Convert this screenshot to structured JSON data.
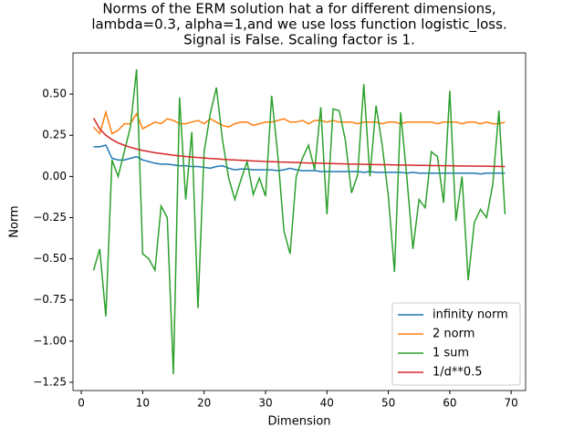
{
  "chart_data": {
    "type": "line",
    "title": [
      "Norms of the ERM solution hat a for different dimensions,",
      "lambda=0.3, alpha=1,and we use loss function logistic_loss.",
      "Signal is False. Scaling factor is 1."
    ],
    "x_label": "Dimension",
    "y_label": "Norm",
    "x": [
      2,
      3,
      4,
      5,
      6,
      7,
      8,
      9,
      10,
      11,
      12,
      13,
      14,
      15,
      16,
      17,
      18,
      19,
      20,
      21,
      22,
      23,
      24,
      25,
      26,
      27,
      28,
      29,
      30,
      31,
      32,
      33,
      34,
      35,
      36,
      37,
      38,
      39,
      40,
      41,
      42,
      43,
      44,
      45,
      46,
      47,
      48,
      49,
      50,
      51,
      52,
      53,
      54,
      55,
      56,
      57,
      58,
      59,
      60,
      61,
      62,
      63,
      64,
      65,
      66,
      67,
      68,
      69
    ],
    "series": [
      {
        "name": "infinity norm",
        "color": "#1f77b4",
        "values": [
          0.18,
          0.18,
          0.19,
          0.11,
          0.1,
          0.1,
          0.11,
          0.12,
          0.1,
          0.09,
          0.08,
          0.075,
          0.075,
          0.07,
          0.065,
          0.065,
          0.06,
          0.06,
          0.055,
          0.05,
          0.06,
          0.065,
          0.05,
          0.04,
          0.045,
          0.045,
          0.04,
          0.04,
          0.04,
          0.04,
          0.035,
          0.04,
          0.05,
          0.04,
          0.035,
          0.035,
          0.035,
          0.03,
          0.03,
          0.03,
          0.03,
          0.03,
          0.03,
          0.03,
          0.025,
          0.03,
          0.025,
          0.025,
          0.025,
          0.025,
          0.025,
          0.02,
          0.025,
          0.02,
          0.02,
          0.02,
          0.02,
          0.02,
          0.02,
          0.02,
          0.02,
          0.02,
          0.02,
          0.015,
          0.02,
          0.02,
          0.02,
          0.02
        ]
      },
      {
        "name": "2 norm",
        "color": "#ff7f0e",
        "values": [
          0.3,
          0.26,
          0.39,
          0.26,
          0.28,
          0.32,
          0.32,
          0.38,
          0.29,
          0.31,
          0.33,
          0.32,
          0.35,
          0.34,
          0.32,
          0.32,
          0.33,
          0.34,
          0.32,
          0.35,
          0.33,
          0.31,
          0.3,
          0.32,
          0.33,
          0.33,
          0.31,
          0.32,
          0.33,
          0.33,
          0.34,
          0.35,
          0.33,
          0.33,
          0.34,
          0.32,
          0.34,
          0.34,
          0.33,
          0.34,
          0.33,
          0.33,
          0.33,
          0.32,
          0.33,
          0.33,
          0.33,
          0.32,
          0.33,
          0.33,
          0.32,
          0.33,
          0.33,
          0.33,
          0.33,
          0.33,
          0.32,
          0.33,
          0.33,
          0.33,
          0.32,
          0.33,
          0.33,
          0.32,
          0.33,
          0.32,
          0.32,
          0.33
        ]
      },
      {
        "name": "1 sum",
        "color": "#2ca02c",
        "values": [
          -0.57,
          -0.44,
          -0.85,
          0.1,
          0.0,
          0.15,
          0.3,
          0.65,
          -0.47,
          -0.5,
          -0.57,
          -0.18,
          -0.25,
          -1.2,
          0.48,
          -0.14,
          0.27,
          -0.8,
          0.15,
          0.38,
          0.54,
          0.22,
          -0.01,
          -0.14,
          -0.02,
          0.09,
          -0.11,
          -0.01,
          -0.12,
          0.49,
          0.13,
          -0.33,
          -0.47,
          0.0,
          0.11,
          0.19,
          0.04,
          0.42,
          -0.23,
          0.41,
          0.4,
          0.22,
          -0.1,
          0.01,
          0.56,
          0.0,
          0.43,
          0.19,
          -0.12,
          -0.58,
          0.39,
          0.0,
          -0.44,
          -0.14,
          -0.19,
          0.15,
          0.12,
          -0.16,
          0.52,
          -0.27,
          0.0,
          -0.63,
          -0.28,
          -0.2,
          -0.25,
          -0.05,
          0.4,
          -0.23
        ]
      },
      {
        "name": "1/d**0.5",
        "color": "#d62728",
        "values": [
          0.354,
          0.289,
          0.25,
          0.224,
          0.204,
          0.189,
          0.177,
          0.167,
          0.158,
          0.151,
          0.144,
          0.139,
          0.134,
          0.129,
          0.125,
          0.121,
          0.118,
          0.115,
          0.112,
          0.109,
          0.107,
          0.104,
          0.102,
          0.1,
          0.098,
          0.096,
          0.094,
          0.093,
          0.091,
          0.09,
          0.088,
          0.087,
          0.086,
          0.085,
          0.083,
          0.082,
          0.081,
          0.08,
          0.079,
          0.078,
          0.077,
          0.076,
          0.075,
          0.075,
          0.074,
          0.073,
          0.072,
          0.071,
          0.071,
          0.07,
          0.069,
          0.069,
          0.068,
          0.067,
          0.067,
          0.066,
          0.066,
          0.065,
          0.065,
          0.064,
          0.064,
          0.063,
          0.063,
          0.062,
          0.062,
          0.061,
          0.061,
          0.06
        ]
      }
    ],
    "xlim": [
      -1.35,
      72.35
    ],
    "ylim": [
      -1.3,
      0.75
    ],
    "xticks": [
      0,
      10,
      20,
      30,
      40,
      50,
      60,
      70
    ],
    "yticks": [
      {
        "value": -1.25,
        "label": "−1.25"
      },
      {
        "value": -1.0,
        "label": "−1.00"
      },
      {
        "value": -0.75,
        "label": "−0.75"
      },
      {
        "value": -0.5,
        "label": "−0.50"
      },
      {
        "value": -0.25,
        "label": "−0.25"
      },
      {
        "value": 0.0,
        "label": "0.00"
      },
      {
        "value": 0.25,
        "label": "0.25"
      },
      {
        "value": 0.5,
        "label": "0.50"
      }
    ],
    "legend": "lower right",
    "grid": false
  }
}
